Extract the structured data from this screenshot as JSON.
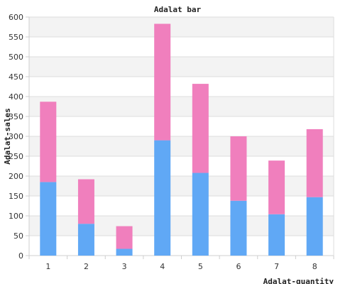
{
  "chart_data": {
    "type": "bar",
    "stacked": true,
    "title": "Adalat bar",
    "xlabel": "Adalat-quantity",
    "ylabel": "Adalat-sales",
    "categories": [
      "1",
      "2",
      "3",
      "4",
      "5",
      "6",
      "7",
      "8"
    ],
    "series": [
      {
        "values": [
          185,
          80,
          17,
          290,
          208,
          138,
          104,
          147
        ],
        "color": "#60a8f5"
      },
      {
        "values": [
          202,
          112,
          57,
          293,
          224,
          162,
          135,
          171
        ],
        "color": "#f07fbd"
      }
    ],
    "ylim": [
      0,
      600
    ],
    "yticks": [
      0,
      50,
      100,
      150,
      200,
      250,
      300,
      350,
      400,
      450,
      500,
      550,
      600
    ],
    "grid": true,
    "legend": "none"
  }
}
